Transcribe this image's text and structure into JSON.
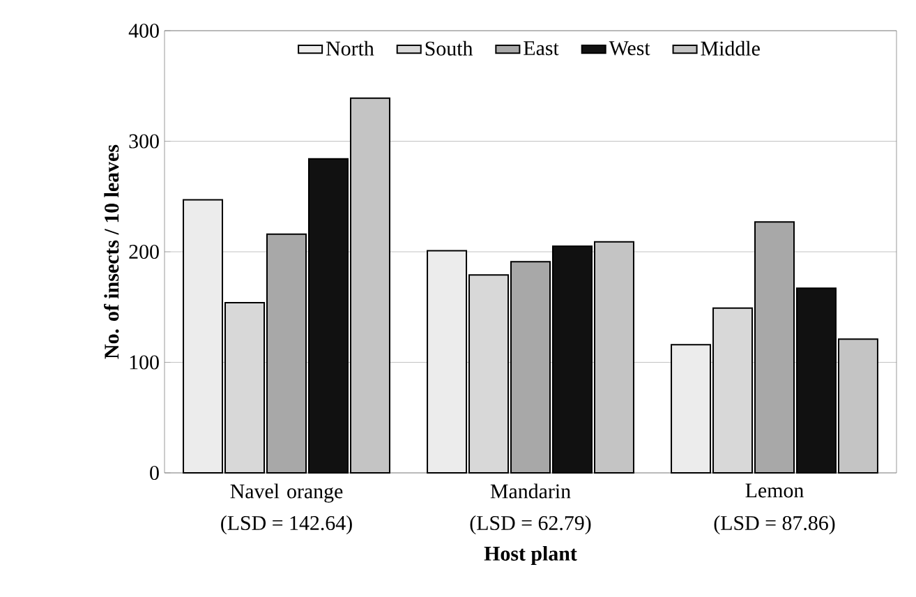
{
  "chart_data": {
    "type": "bar",
    "xlabel": "Host plant",
    "ylabel": "No. of insects / 10 leaves",
    "categories": [
      "Navel orange",
      "Mandarin",
      "Lemon"
    ],
    "annotations": [
      "(LSD = 142.64)",
      "(LSD = 62.79)",
      "(LSD = 87.86)"
    ],
    "series": [
      {
        "name": "North",
        "color": "#ececec",
        "values": [
          247,
          201,
          116
        ]
      },
      {
        "name": "South",
        "color": "#d8d8d8",
        "values": [
          154,
          179,
          149
        ]
      },
      {
        "name": "East",
        "color": "#a8a8a8",
        "values": [
          216,
          191,
          227
        ]
      },
      {
        "name": "West",
        "color": "#111111",
        "values": [
          284,
          205,
          167
        ]
      },
      {
        "name": "Middle",
        "color": "#c4c4c4",
        "values": [
          339,
          209,
          121
        ]
      }
    ],
    "ylim": [
      0,
      400
    ],
    "yticks": [
      0,
      100,
      200,
      300,
      400
    ],
    "grid": "y",
    "legend": "top"
  }
}
